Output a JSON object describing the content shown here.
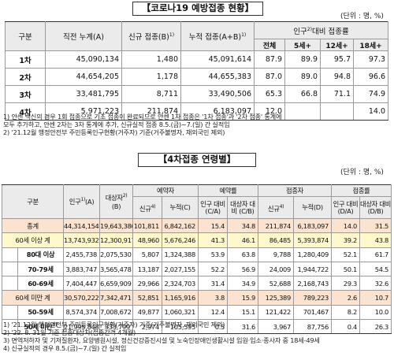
{
  "section1": {
    "title": "【코로나19 예방접종 현황】",
    "unit": "(단위 : 명, %)",
    "headers": {
      "category": "구분",
      "cumulative": "직전 누계(A)",
      "new": "신규 접종(B)",
      "new_sup": "1)",
      "total": "누적 접종(A+B)",
      "total_sup": "1)",
      "ratio": "인구",
      "ratio_sup": "2)",
      "ratio_rest": "대비 접종률",
      "sub": [
        "전체",
        "5세+",
        "12세+",
        "18세+"
      ]
    },
    "rows": [
      {
        "label": "1차",
        "cum": "45,090,134",
        "new": "1,480",
        "total": "45,091,614",
        "r1": "87.9",
        "r2": "89.9",
        "r3": "95.7",
        "r4": "97.3"
      },
      {
        "label": "2차",
        "cum": "44,654,205",
        "new": "1,178",
        "total": "44,655,383",
        "r1": "87.0",
        "r2": "89.0",
        "r3": "94.8",
        "r4": "96.6"
      },
      {
        "label": "3차",
        "cum": "33,481,795",
        "new": "8,711",
        "total": "33,490,506",
        "r1": "65.3",
        "r2": "66.8",
        "r3": "71.1",
        "r4": "74.9"
      },
      {
        "label": "4차",
        "cum": "5,971,223",
        "new": "211,874",
        "total": "6,183,097",
        "r1": "12.0",
        "r2": "",
        "r3": "",
        "r4": "14.0"
      }
    ],
    "notes": [
      "1) 얀센 백신의 경우 1회 접종으로 기초 접종이 완료되므로 얀센 1차 접종은 '1차 접종'과 '2차 접종' 통계에",
      "   모두 추가하고, 얀센 2차는 3차 통계에 추가, 신규실적 접종 8.5.(금)~7.(일) 간 실적임",
      "2) '21.12월 행정안전부 주민등록인구현황(거주자) 기준(거주불명자, 재외국민 제외)"
    ]
  },
  "section2": {
    "title": "【4차접종 연령별】",
    "unit": "(단위 : 명, %)",
    "headers": {
      "category": "구분",
      "pop": "인구",
      "pop_sup": "1)",
      "pop_unit": "(A)",
      "target": "대상자",
      "target_sup": "2)",
      "target_unit": "(B)",
      "reserved": "예약자",
      "reserve_rate": "예약률",
      "vaccinated": "접종자",
      "vacc_rate": "접종률",
      "new": "신규",
      "new_sup4": "4)",
      "cum_c": "누적(C)",
      "cum_d": "누적(D)",
      "pop_ratio_c": "인구 대비 (C/A)",
      "target_ratio_c": "대상자 대비 (C/B)",
      "pop_ratio_d": "인구 대비 (D/A)",
      "target_ratio_d": "대상자 대비 (D/B)"
    },
    "rows": [
      {
        "label": "총계",
        "pop": "44,314,154",
        "target": "19,643,386",
        "new_res": "101,811",
        "cum_res": "6,842,162",
        "rr1": "15.4",
        "rr2": "34.8",
        "new_vac": "211,874",
        "cum_vac": "6,183,097",
        "vr1": "14.0",
        "vr2": "31.5"
      },
      {
        "label": "60세 이상 계",
        "pop": "13,743,932",
        "target": "12,300,917",
        "new_res": "48,960",
        "cum_res": "5,676,246",
        "rr1": "41.3",
        "rr2": "46.1",
        "new_vac": "86,485",
        "cum_vac": "5,393,874",
        "vr1": "39.2",
        "vr2": "43.8"
      },
      {
        "label": "80대 이상",
        "pop": "2,455,738",
        "target": "2,075,530",
        "new_res": "5,807",
        "cum_res": "1,324,388",
        "rr1": "53.9",
        "rr2": "63.8",
        "new_vac": "9,788",
        "cum_vac": "1,280,409",
        "vr1": "52.1",
        "vr2": "61.7"
      },
      {
        "label": "70-79세",
        "pop": "3,883,747",
        "target": "3,565,478",
        "new_res": "13,187",
        "cum_res": "2,027,155",
        "rr1": "52.2",
        "rr2": "56.9",
        "new_vac": "24,009",
        "cum_vac": "1,944,722",
        "vr1": "50.1",
        "vr2": "54.5"
      },
      {
        "label": "60-69세",
        "pop": "7,404,447",
        "target": "6,659,909",
        "new_res": "29,966",
        "cum_res": "2,324,703",
        "rr1": "31.4",
        "rr2": "34.9",
        "new_vac": "52,688",
        "cum_vac": "2,168,743",
        "vr1": "29.3",
        "vr2": "32.6"
      },
      {
        "label": "60세 미만 계",
        "pop": "30,570,222",
        "target": "7,342,471",
        "new_res": "52,851",
        "cum_res": "1,165,916",
        "rr1": "3.8",
        "rr2": "15.9",
        "new_vac": "125,389",
        "cum_vac": "789,223",
        "vr1": "2.6",
        "vr2": "10.7"
      },
      {
        "label": "50-59세",
        "pop": "8,574,374",
        "target": "7,008,672",
        "new_res": "49,877",
        "cum_res": "1,060,321",
        "rr1": "12.4",
        "rr2": "15.1",
        "new_vac": "121,422",
        "cum_vac": "701,467",
        "vr1": "8.2",
        "vr2": "10.0"
      },
      {
        "label": "50세 미만",
        "label_sup": "3)",
        "pop": "21,995,848",
        "target": "333,799",
        "new_res": "2,974",
        "cum_res": "105,595",
        "rr1": "0.5",
        "rr2": "31.6",
        "new_vac": "3,967",
        "cum_vac": "87,756",
        "vr1": "0.4",
        "vr2": "26.3"
      }
    ],
    "notes": [
      "1) '21.12월 행정안전부 주민등록인구현황(거주자) 기준(거주불명자, 재외국민 제외)",
      "2) '22. 8. 31일 기준 접종대상자(접종간격 4개월)",
      "3) 면역저하자 및 기저질환자, 요양병원시설, 정신건강증진시설 및 노숙인장애인생활시설 입원·입소·종사자 중 18세-49세",
      "4) 신규실적의 경우 8.5.(금)~7.(일) 간 실적임"
    ]
  }
}
